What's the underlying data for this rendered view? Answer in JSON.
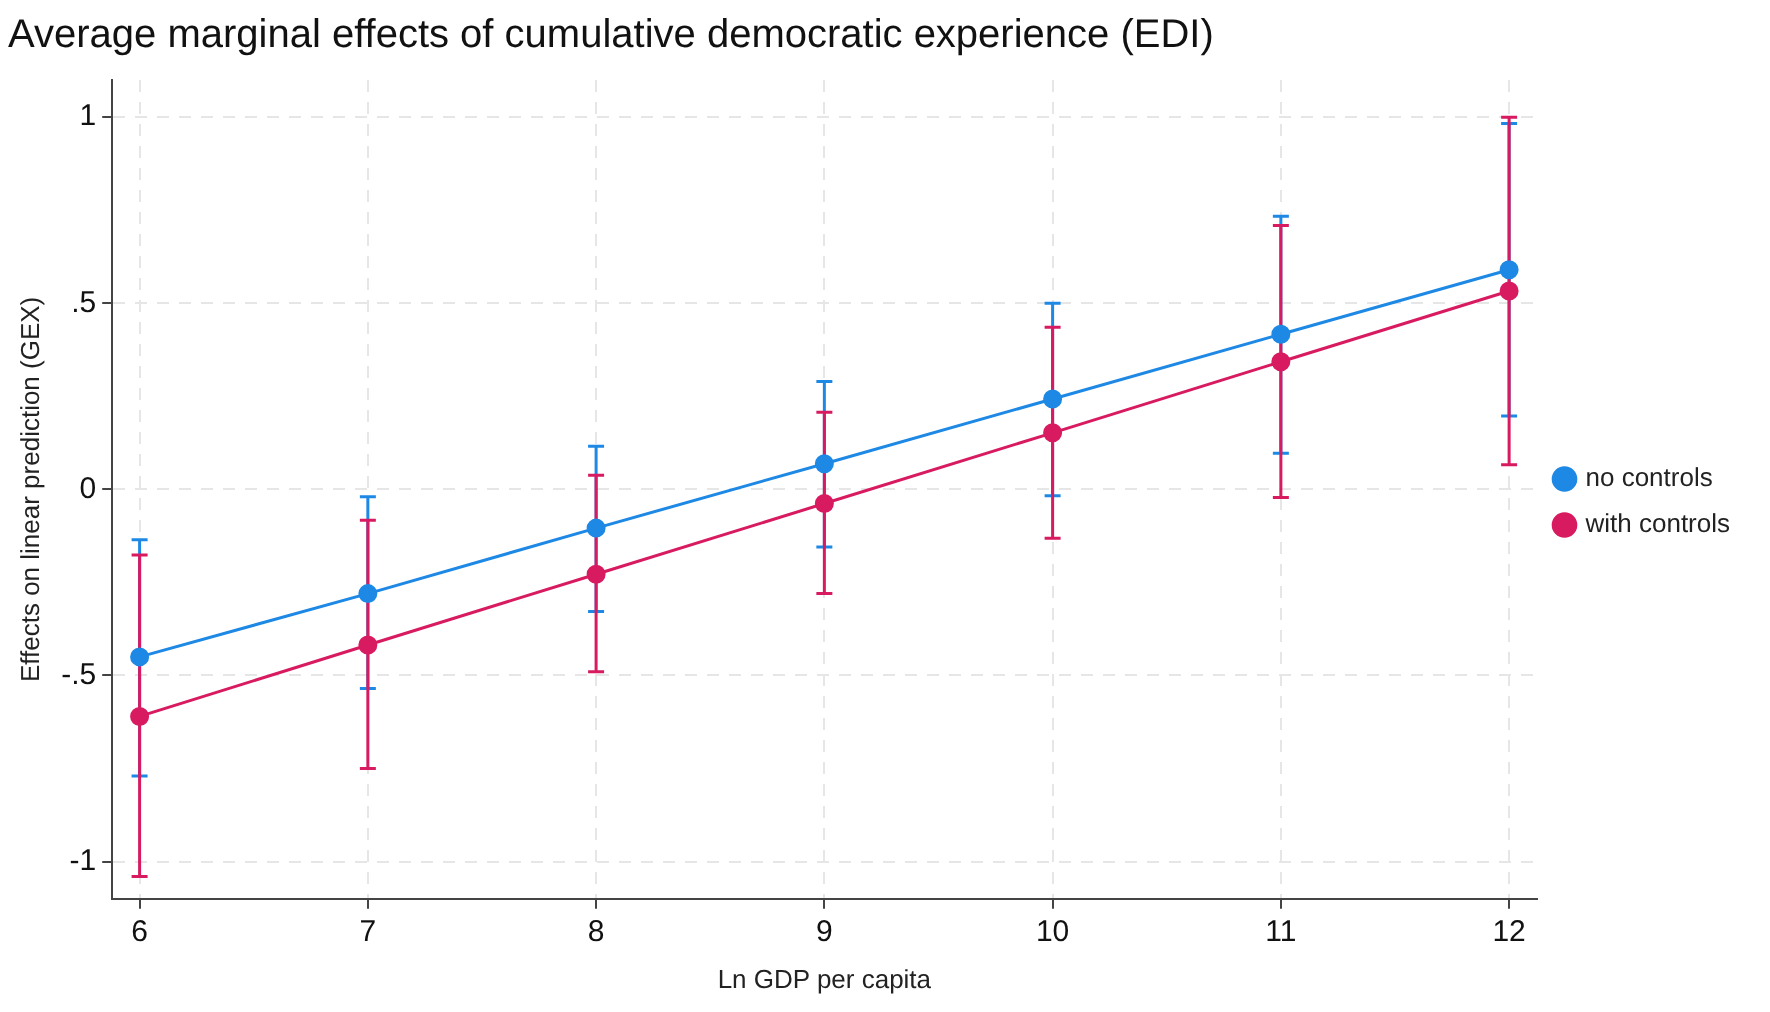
{
  "chart_data": {
    "type": "line",
    "title": "Average marginal effects of cumulative democratic experience (EDI)",
    "xlabel": "Ln GDP per capita",
    "ylabel": "Effects on linear prediction (GEX)",
    "x": [
      6,
      7,
      8,
      9,
      10,
      11,
      12
    ],
    "series": [
      {
        "name": "no controls",
        "color": "#1e88e5",
        "values": [
          -0.45,
          -0.28,
          -0.104,
          0.069,
          0.243,
          0.417,
          0.59
        ],
        "errors": [
          [
            -0.77,
            -0.135
          ],
          [
            -0.535,
            -0.02
          ],
          [
            -0.328,
            0.116
          ],
          [
            -0.155,
            0.29
          ],
          [
            -0.017,
            0.5
          ],
          [
            0.097,
            0.734
          ],
          [
            0.197,
            0.983
          ]
        ]
      },
      {
        "name": "with controls",
        "color": "#d81b60",
        "values": [
          -0.61,
          -0.418,
          -0.228,
          -0.038,
          0.152,
          0.343,
          0.533
        ],
        "errors": [
          [
            -1.04,
            -0.176
          ],
          [
            -0.75,
            -0.083
          ],
          [
            -0.49,
            0.038
          ],
          [
            -0.28,
            0.207
          ],
          [
            -0.131,
            0.436
          ],
          [
            -0.022,
            0.709
          ],
          [
            0.066,
            1.0
          ]
        ]
      }
    ],
    "xlim": [
      5.88,
      12.12
    ],
    "xticks": [
      6,
      7,
      8,
      9,
      10,
      11,
      12
    ],
    "ylim": [
      -1.1,
      1.1
    ],
    "yticks": [
      {
        "value": -1,
        "label": "-1"
      },
      {
        "value": -0.5,
        "label": "-.5"
      },
      {
        "value": 0,
        "label": "0"
      },
      {
        "value": 0.5,
        "label": ".5"
      },
      {
        "value": 1,
        "label": "1"
      }
    ],
    "grid": true,
    "legend": "right",
    "marker": "circle",
    "line_style": "solid"
  }
}
